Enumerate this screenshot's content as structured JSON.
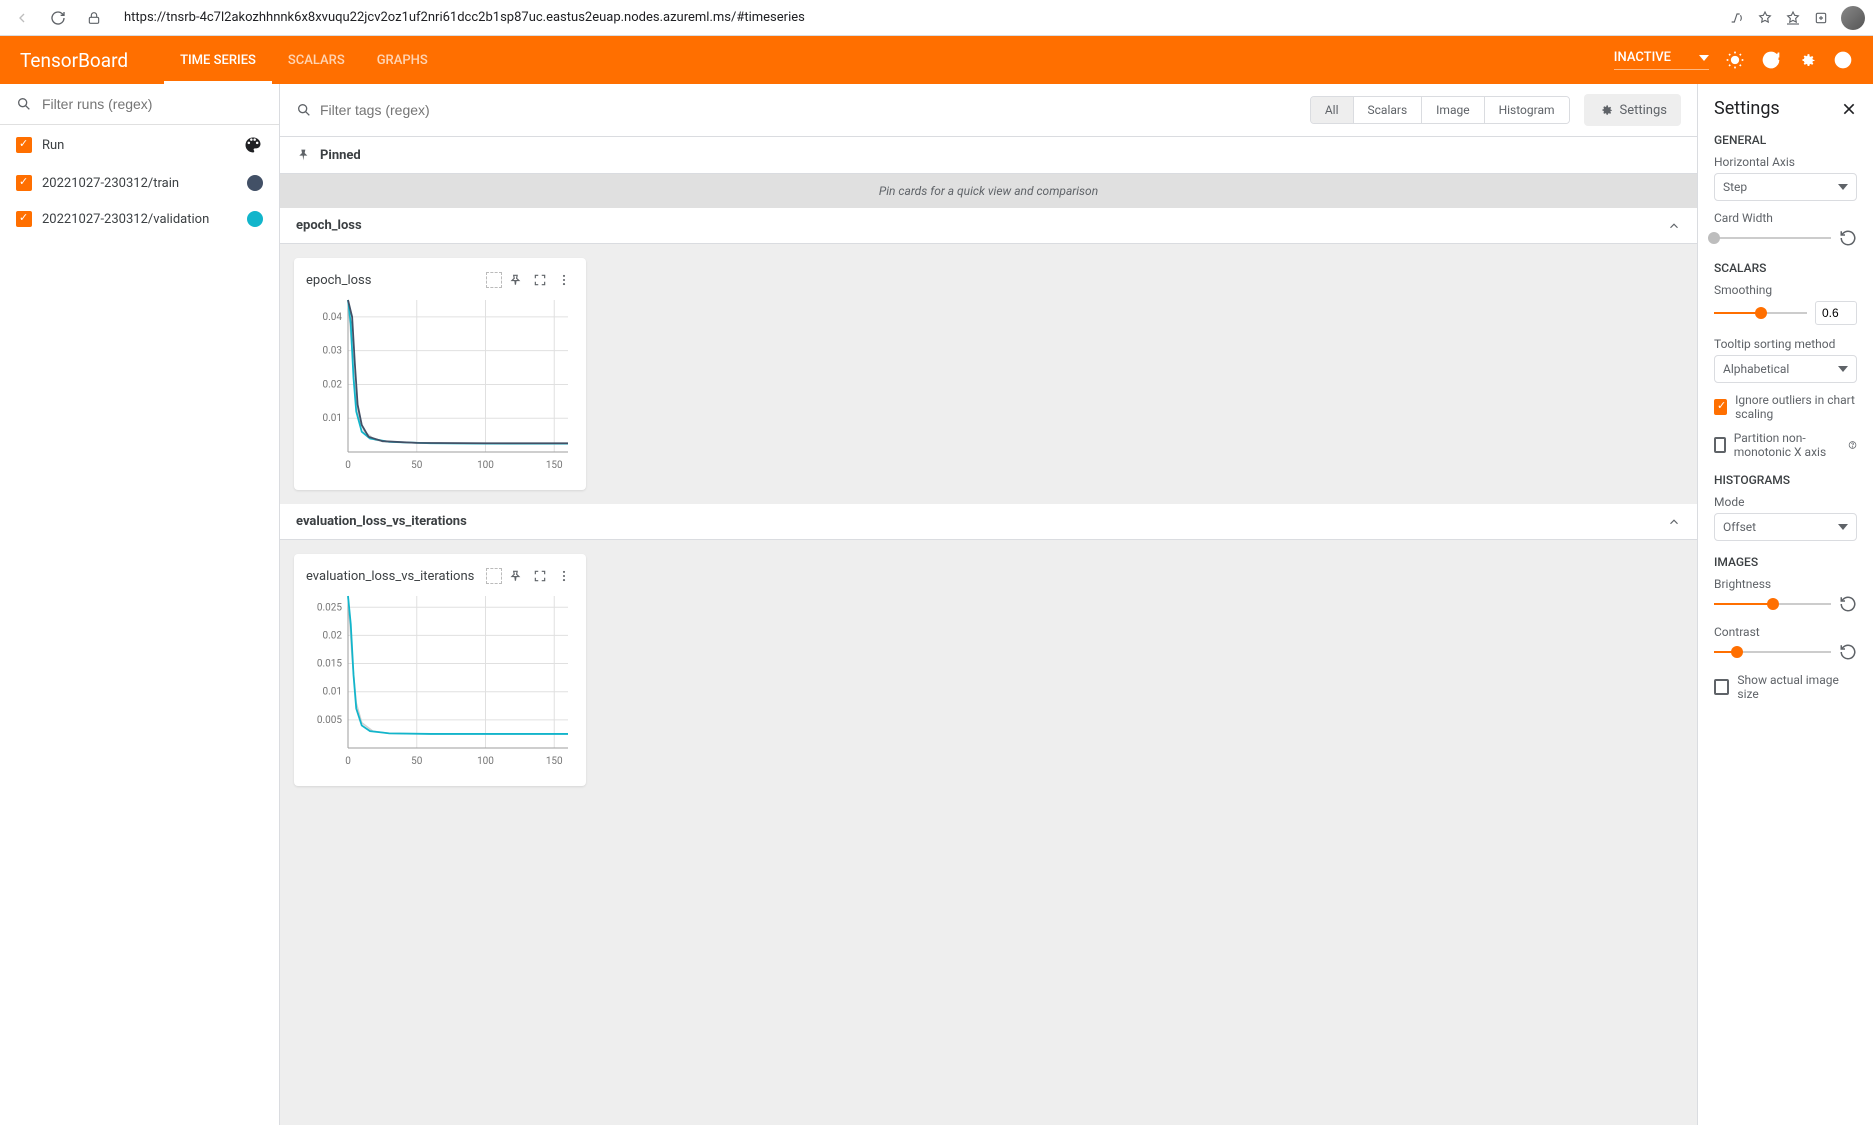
{
  "browser": {
    "url": "https://tnsrb-4c7l2akozhhnnk6x8xvuqu22jcv2oz1uf2nri61dcc2b1sp87uc.eastus2euap.nodes.azureml.ms/#timeseries"
  },
  "header": {
    "app_name": "TensorBoard",
    "tabs": [
      {
        "label": "TIME SERIES",
        "active": true
      },
      {
        "label": "SCALARS",
        "active": false
      },
      {
        "label": "GRAPHS",
        "active": false
      }
    ],
    "status": "INACTIVE"
  },
  "sidebar": {
    "search_placeholder": "Filter runs (regex)",
    "runs": [
      {
        "name": "Run",
        "color": null,
        "header": true
      },
      {
        "name": "20221027-230312/train",
        "color": "#425066"
      },
      {
        "name": "20221027-230312/validation",
        "color": "#12b5cb"
      }
    ]
  },
  "content": {
    "tag_search_placeholder": "Filter tags (regex)",
    "pills": [
      {
        "label": "All",
        "active": true
      },
      {
        "label": "Scalars",
        "active": false
      },
      {
        "label": "Image",
        "active": false
      },
      {
        "label": "Histogram",
        "active": false
      }
    ],
    "settings_button": "Settings",
    "pinned_label": "Pinned",
    "pin_hint": "Pin cards for a quick view and comparison",
    "sections": [
      {
        "title": "epoch_loss",
        "card": {
          "title": "epoch_loss",
          "chart": {
            "type": "line",
            "xlim": [
              0,
              160
            ],
            "xticks": [
              0,
              50,
              100,
              150
            ],
            "ylim": [
              0,
              0.045
            ],
            "yticks": [
              0.01,
              0.02,
              0.03,
              0.04
            ],
            "grid_color": "#e0e0e0",
            "axis_color": "#9e9e9e",
            "label_color": "#757575",
            "label_fontsize": 10,
            "background_color": "#ffffff",
            "series": [
              {
                "color": "#d0d0d0",
                "width": 1.5,
                "x": [
                  0,
                  3,
                  5,
                  8,
                  12,
                  20,
                  40,
                  80,
                  120,
                  160
                ],
                "y": [
                  0.045,
                  0.03,
                  0.018,
                  0.01,
                  0.006,
                  0.0035,
                  0.0028,
                  0.0025,
                  0.0024,
                  0.0024
                ]
              },
              {
                "color": "#12b5cb",
                "width": 1.8,
                "x": [
                  0,
                  2,
                  4,
                  6,
                  10,
                  16,
                  30,
                  60,
                  100,
                  160
                ],
                "y": [
                  0.045,
                  0.038,
                  0.022,
                  0.012,
                  0.006,
                  0.004,
                  0.003,
                  0.0026,
                  0.0025,
                  0.0025
                ]
              },
              {
                "color": "#425066",
                "width": 1.8,
                "x": [
                  0,
                  3,
                  5,
                  7,
                  10,
                  15,
                  25,
                  50,
                  100,
                  160
                ],
                "y": [
                  0.045,
                  0.04,
                  0.026,
                  0.014,
                  0.008,
                  0.0045,
                  0.0032,
                  0.0027,
                  0.0026,
                  0.0026
                ]
              }
            ]
          }
        }
      },
      {
        "title": "evaluation_loss_vs_iterations",
        "card": {
          "title": "evaluation_loss_vs_iterations",
          "chart": {
            "type": "line",
            "xlim": [
              0,
              160
            ],
            "xticks": [
              0,
              50,
              100,
              150
            ],
            "ylim": [
              0,
              0.027
            ],
            "yticks": [
              0.005,
              0.01,
              0.015,
              0.02,
              0.025
            ],
            "grid_color": "#e0e0e0",
            "axis_color": "#9e9e9e",
            "label_color": "#757575",
            "label_fontsize": 10,
            "background_color": "#ffffff",
            "series": [
              {
                "color": "#d0d0d0",
                "width": 1.5,
                "x": [
                  0,
                  3,
                  6,
                  10,
                  18,
                  30,
                  60,
                  100,
                  160
                ],
                "y": [
                  0.027,
                  0.016,
                  0.008,
                  0.0045,
                  0.003,
                  0.0026,
                  0.0025,
                  0.0025,
                  0.0025
                ]
              },
              {
                "color": "#12b5cb",
                "width": 1.8,
                "x": [
                  0,
                  2,
                  4,
                  6,
                  10,
                  16,
                  30,
                  60,
                  100,
                  160
                ],
                "y": [
                  0.027,
                  0.022,
                  0.013,
                  0.007,
                  0.004,
                  0.003,
                  0.0026,
                  0.0025,
                  0.0025,
                  0.0025
                ]
              }
            ]
          }
        }
      }
    ]
  },
  "settings": {
    "title": "Settings",
    "general_label": "GENERAL",
    "hax_label": "Horizontal Axis",
    "hax_value": "Step",
    "card_width_label": "Card Width",
    "card_width_pct": 0,
    "scalars_label": "SCALARS",
    "smoothing_label": "Smoothing",
    "smoothing_value": "0.6",
    "smoothing_pct": 50,
    "tooltip_label": "Tooltip sorting method",
    "tooltip_value": "Alphabetical",
    "ignore_outliers_label": "Ignore outliers in chart scaling",
    "ignore_outliers_checked": true,
    "partition_label": "Partition non-monotonic X axis",
    "partition_checked": false,
    "histograms_label": "HISTOGRAMS",
    "mode_label": "Mode",
    "mode_value": "Offset",
    "images_label": "IMAGES",
    "brightness_label": "Brightness",
    "brightness_pct": 50,
    "contrast_label": "Contrast",
    "contrast_pct": 20,
    "actual_size_label": "Show actual image size",
    "actual_size_checked": false
  }
}
